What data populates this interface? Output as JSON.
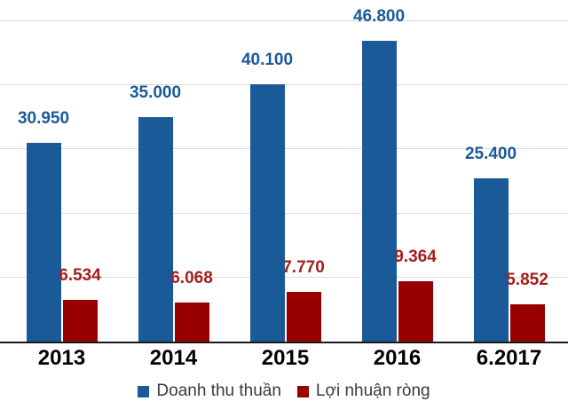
{
  "chart_data": {
    "type": "bar",
    "title": "",
    "xlabel": "",
    "ylabel": "",
    "categories": [
      "2013",
      "2014",
      "2015",
      "2016",
      "6.2017"
    ],
    "series": [
      {
        "key": "net-revenue",
        "name": "Doanh thu thuần",
        "color": "#1B5A99",
        "label_color": "#1B5A99",
        "values": [
          30950,
          35000,
          40100,
          46800,
          25400
        ],
        "labels": [
          "30.950",
          "35.000",
          "40.100",
          "46.800",
          "25.400"
        ]
      },
      {
        "key": "net-profit",
        "name": "Lợi nhuận ròng",
        "color": "#980000",
        "label_color": "#A31F1F",
        "values": [
          6534,
          6068,
          7770,
          9364,
          5852
        ],
        "labels": [
          "6.534",
          "6.068",
          "7.770",
          "9.364",
          "5.852"
        ]
      }
    ],
    "ylim": [
      0,
      50000
    ],
    "grid_step": 10000,
    "grid": true,
    "y_axis_labels_visible": false,
    "legend_position": "bottom",
    "colors": {
      "gridline": "#dcdcdc",
      "axis_line": "#1a1a1a",
      "x_tick_label": "#000000",
      "legend_text": "#3a3a3a",
      "background": "#ffffff"
    }
  }
}
